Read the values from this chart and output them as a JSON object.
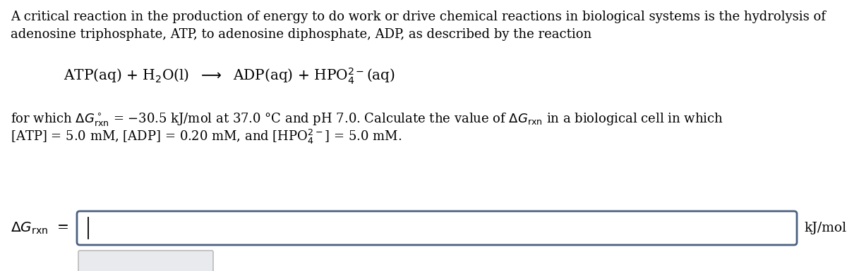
{
  "background_color": "#ffffff",
  "text_color": "#000000",
  "box_edge_color": "#4a6080",
  "box_fill_color": "#ffffff",
  "small_box_edge": "#bbbbbb",
  "small_box_fill": "#e8eaed",
  "font_size_main": 13.0,
  "font_size_equation": 14.5,
  "font_size_answer_label": 14.5,
  "font_size_unit": 13.5,
  "para1_line1": "A critical reaction in the production of energy to do work or drive chemical reactions in biological systems is the hydrolysis of",
  "para1_line2": "adenosine triphosphate, ATP, to adenosine diphosphate, ADP, as described by the reaction",
  "equation": "ATP(aq) + H$_2$O(l)  $\\longrightarrow$  ADP(aq) + HPO$_4^{2-}$(aq)",
  "para2_line1_before": "for which ",
  "para2_line1_after": " = −30.5 kJ/mol at 37.0 °C and pH 7.0. Calculate the value of ",
  "para2_line1_end": " in a biological cell in which",
  "para2_line2": "[ATP] = 5.0 mM, [ADP] = 0.20 mM, and [HPO$_4^{2-}$] = 5.0 mM.",
  "answer_unit": "kJ/mol"
}
